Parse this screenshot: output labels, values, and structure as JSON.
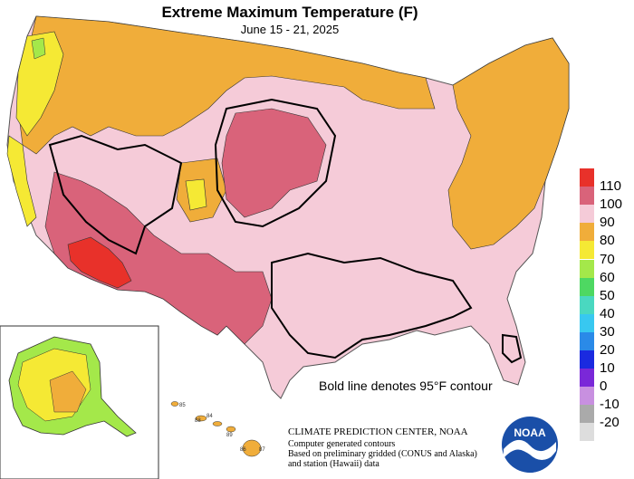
{
  "title": "Extreme Maximum Temperature (F)",
  "subtitle": "June 15 - 21, 2025",
  "legend": [
    {
      "label": "110",
      "color": "#e8312a"
    },
    {
      "label": "100",
      "color": "#d9637a"
    },
    {
      "label": "90",
      "color": "#f5cbd8"
    },
    {
      "label": "80",
      "color": "#f0ad3a"
    },
    {
      "label": "70",
      "color": "#f5e934"
    },
    {
      "label": "60",
      "color": "#a4e84a"
    },
    {
      "label": "50",
      "color": "#4ed862"
    },
    {
      "label": "40",
      "color": "#4ad8c0"
    },
    {
      "label": "30",
      "color": "#38c8f0"
    },
    {
      "label": "20",
      "color": "#2a8ae8"
    },
    {
      "label": "10",
      "color": "#1a2ae0"
    },
    {
      "label": "0",
      "color": "#7a28d8"
    },
    {
      "label": "-10",
      "color": "#c890e0"
    },
    {
      "label": "-20",
      "color": "#aaaaaa"
    },
    {
      "label": "",
      "color": "#dddddd"
    }
  ],
  "contour_note": "Bold line denotes 95°F contour",
  "hawaii_labels": [
    "85",
    "88",
    "84",
    "89",
    "86",
    "87"
  ],
  "credits": {
    "line1": "CLIMATE PREDICTION CENTER, NOAA",
    "line2": "Computer generated contours",
    "line3": "Based on preliminary gridded (CONUS and Alaska)",
    "line4": "and station (Hawaii) data"
  },
  "logo_text": "NOAA"
}
